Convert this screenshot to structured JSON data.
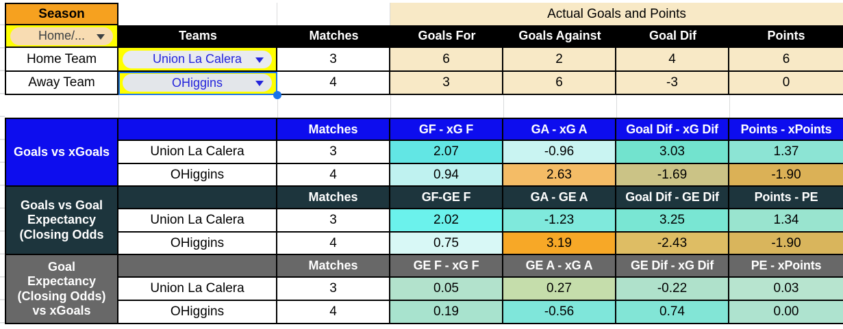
{
  "palette": {
    "grid-line": "#d9dadb",
    "season-orange": "#f6a11f",
    "filter-yellow": "#ffff00",
    "pill-peach": "#f8dcb2",
    "pill-gray": "#e9ebef",
    "pill-gray-selected": "#e3e6ea",
    "link-blue": "#2424db",
    "tan": "#f8e9c6",
    "section1-blue": "#0d0dee",
    "section2-dark": "#1d353d",
    "section3-gray": "#686868",
    "selection-blue": "#1a73e8"
  },
  "top": {
    "season_label": "Season",
    "filter_label": "Home/...",
    "banner": "Actual Goals and Points",
    "col_headers": [
      "Teams",
      "Matches",
      "Goals For",
      "Goals Against",
      "Goal Dif",
      "Points"
    ],
    "rows": [
      {
        "label": "Home Team",
        "team": "Union La Calera",
        "matches": "3",
        "values": [
          "6",
          "2",
          "4",
          "6"
        ]
      },
      {
        "label": "Away Team",
        "team": "OHiggins",
        "matches": "4",
        "values": [
          "3",
          "6",
          "-3",
          "0"
        ]
      }
    ]
  },
  "sections": [
    {
      "label": "Goals vs xGoals",
      "matches_header": "Matches",
      "headers": [
        "GF - xG F",
        "GA - xG A",
        "Goal Dif - xG Dif",
        "Points - xPoints"
      ],
      "rows": [
        {
          "team": "Union La Calera",
          "matches": "3",
          "values": [
            {
              "v": "2.07",
              "bg": "#62e6e4"
            },
            {
              "v": "-0.96",
              "bg": "#c9f4f2"
            },
            {
              "v": "3.03",
              "bg": "#72e3ce"
            },
            {
              "v": "1.37",
              "bg": "#8ce4d4"
            }
          ]
        },
        {
          "team": "OHiggins",
          "matches": "4",
          "values": [
            {
              "v": "0.94",
              "bg": "#bff2f0"
            },
            {
              "v": "2.63",
              "bg": "#f4bc66"
            },
            {
              "v": "-1.69",
              "bg": "#cbc386"
            },
            {
              "v": "-1.90",
              "bg": "#dbb156"
            }
          ]
        }
      ]
    },
    {
      "label": "Goals vs Goal\nExpectancy\n(Closing Odds",
      "matches_header": "Matches",
      "headers": [
        "GF-GE F",
        "GA - GE A",
        "Goal Dif - GE Dif",
        "Points - PE"
      ],
      "rows": [
        {
          "team": "Union La Calera",
          "matches": "3",
          "values": [
            {
              "v": "2.02",
              "bg": "#6bf2ec"
            },
            {
              "v": "-1.23",
              "bg": "#7fe9dc"
            },
            {
              "v": "3.25",
              "bg": "#79e6d3"
            },
            {
              "v": "1.34",
              "bg": "#99e4cf"
            }
          ]
        },
        {
          "team": "OHiggins",
          "matches": "4",
          "values": [
            {
              "v": "0.75",
              "bg": "#d8f8f6"
            },
            {
              "v": "3.19",
              "bg": "#f7a827"
            },
            {
              "v": "-2.43",
              "bg": "#debd64"
            },
            {
              "v": "-1.90",
              "bg": "#d9b55c"
            }
          ]
        }
      ]
    },
    {
      "label": "Goal\nExpectancy\n(Closing Odds)\nvs xGoals",
      "matches_header": "Matches",
      "headers": [
        "GE F - xG F",
        "GE A - xG A",
        "GE Dif - xG Dif",
        "PE - xPoints"
      ],
      "rows": [
        {
          "team": "Union La Calera",
          "matches": "3",
          "values": [
            {
              "v": "0.05",
              "bg": "#b2e2cc"
            },
            {
              "v": "0.27",
              "bg": "#c5ddab"
            },
            {
              "v": "-0.22",
              "bg": "#afe1cb"
            },
            {
              "v": "0.03",
              "bg": "#b7e4cf"
            }
          ]
        },
        {
          "team": "OHiggins",
          "matches": "4",
          "values": [
            {
              "v": "0.19",
              "bg": "#a8e3ce"
            },
            {
              "v": "-0.56",
              "bg": "#7fe6da"
            },
            {
              "v": "0.74",
              "bg": "#82e5d6"
            },
            {
              "v": "0.00",
              "bg": "#aee3cf"
            }
          ]
        }
      ]
    }
  ]
}
